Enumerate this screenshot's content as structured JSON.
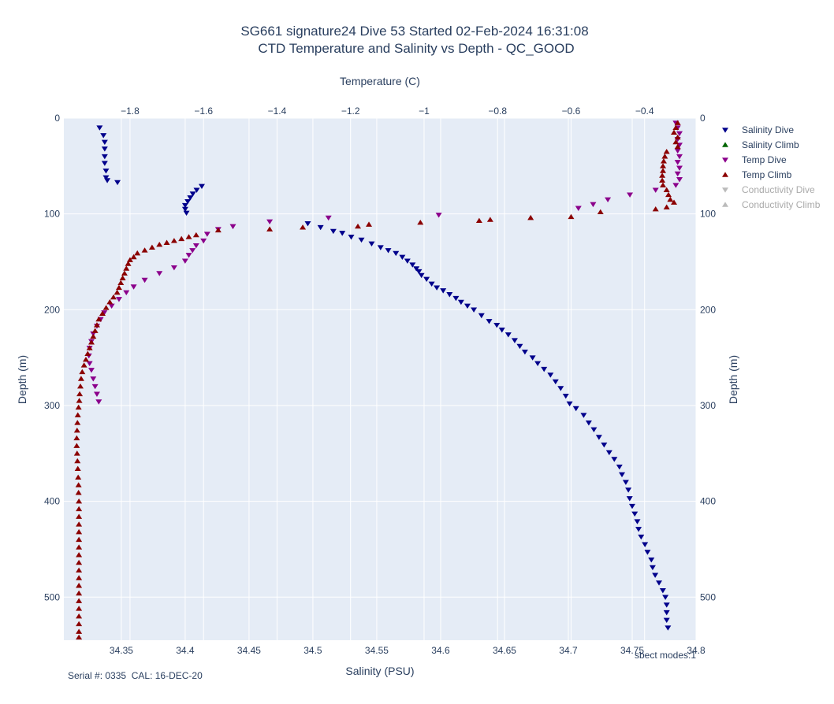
{
  "chart_data": {
    "type": "scatter",
    "title": "SG661 signature24 Dive 53 Started 02-Feb-2024 16:31:08",
    "subtitle": "CTD Temperature and Salinity vs Depth - QC_GOOD",
    "xlabel_bottom": "Salinity (PSU)",
    "xlabel_top": "Temperature (C)",
    "ylabel": "Depth (m)",
    "salinity_range": [
      34.305,
      34.8
    ],
    "temperature_range": [
      -1.98,
      -0.26
    ],
    "depth_range": [
      545,
      0
    ],
    "grid": true,
    "legend_position": "right",
    "salinity_ticks": [
      "34.35",
      "34.4",
      "34.45",
      "34.5",
      "34.55",
      "34.6",
      "34.65",
      "34.7",
      "34.75",
      "34.8"
    ],
    "salinity_tick_values": [
      34.35,
      34.4,
      34.45,
      34.5,
      34.55,
      34.6,
      34.65,
      34.7,
      34.75,
      34.8
    ],
    "temperature_ticks": [
      "−1.8",
      "−1.6",
      "−1.4",
      "−1.2",
      "−1",
      "−0.8",
      "−0.6",
      "−0.4"
    ],
    "temperature_tick_values": [
      -1.8,
      -1.6,
      -1.4,
      -1.2,
      -1.0,
      -0.8,
      -0.6,
      -0.4
    ],
    "depth_ticks": [
      "0",
      "100",
      "200",
      "300",
      "400",
      "500"
    ],
    "depth_tick_values": [
      0,
      100,
      200,
      300,
      400,
      500
    ],
    "series": [
      {
        "name": "Salinity Dive",
        "axis": "salinity",
        "marker": "triangle-down",
        "color": "#00008b",
        "visible": true,
        "points": [
          [
            34.333,
            10
          ],
          [
            34.336,
            18
          ],
          [
            34.337,
            25
          ],
          [
            34.337,
            32
          ],
          [
            34.337,
            40
          ],
          [
            34.337,
            47
          ],
          [
            34.338,
            55
          ],
          [
            34.338,
            62
          ],
          [
            34.339,
            65
          ],
          [
            34.347,
            67
          ],
          [
            34.413,
            71
          ],
          [
            34.409,
            75
          ],
          [
            34.406,
            79
          ],
          [
            34.404,
            83
          ],
          [
            34.402,
            87
          ],
          [
            34.4,
            91
          ],
          [
            34.4,
            95
          ],
          [
            34.401,
            99
          ],
          [
            34.496,
            110
          ],
          [
            34.506,
            114
          ],
          [
            34.516,
            118
          ],
          [
            34.523,
            120
          ],
          [
            34.53,
            124
          ],
          [
            34.538,
            127
          ],
          [
            34.546,
            131
          ],
          [
            34.553,
            135
          ],
          [
            34.559,
            138
          ],
          [
            34.565,
            141
          ],
          [
            34.57,
            145
          ],
          [
            34.574,
            149
          ],
          [
            34.578,
            153
          ],
          [
            34.581,
            157
          ],
          [
            34.583,
            160
          ],
          [
            34.585,
            164
          ],
          [
            34.589,
            168
          ],
          [
            34.593,
            173
          ],
          [
            34.597,
            177
          ],
          [
            34.602,
            180
          ],
          [
            34.607,
            184
          ],
          [
            34.612,
            188
          ],
          [
            34.616,
            192
          ],
          [
            34.621,
            196
          ],
          [
            34.626,
            200
          ],
          [
            34.632,
            206
          ],
          [
            34.638,
            212
          ],
          [
            34.644,
            216
          ],
          [
            34.648,
            221
          ],
          [
            34.653,
            226
          ],
          [
            34.658,
            232
          ],
          [
            34.662,
            238
          ],
          [
            34.666,
            244
          ],
          [
            34.672,
            250
          ],
          [
            34.676,
            256
          ],
          [
            34.681,
            262
          ],
          [
            34.686,
            268
          ],
          [
            34.69,
            275
          ],
          [
            34.694,
            282
          ],
          [
            34.698,
            290
          ],
          [
            34.701,
            298
          ],
          [
            34.706,
            303
          ],
          [
            34.712,
            310
          ],
          [
            34.716,
            318
          ],
          [
            34.72,
            325
          ],
          [
            34.724,
            333
          ],
          [
            34.728,
            341
          ],
          [
            34.732,
            349
          ],
          [
            34.736,
            356
          ],
          [
            34.74,
            364
          ],
          [
            34.742,
            372
          ],
          [
            34.745,
            380
          ],
          [
            34.747,
            388
          ],
          [
            34.748,
            397
          ],
          [
            34.75,
            405
          ],
          [
            34.752,
            413
          ],
          [
            34.754,
            421
          ],
          [
            34.755,
            429
          ],
          [
            34.757,
            437
          ],
          [
            34.76,
            445
          ],
          [
            34.762,
            453
          ],
          [
            34.765,
            461
          ],
          [
            34.766,
            469
          ],
          [
            34.768,
            477
          ],
          [
            34.771,
            485
          ],
          [
            34.774,
            493
          ],
          [
            34.776,
            500
          ],
          [
            34.777,
            508
          ],
          [
            34.777,
            516
          ],
          [
            34.777,
            524
          ],
          [
            34.778,
            532
          ]
        ]
      },
      {
        "name": "Salinity Climb",
        "axis": "salinity",
        "marker": "triangle-up",
        "color": "#006400",
        "visible": true,
        "points": []
      },
      {
        "name": "Temp Dive",
        "axis": "temperature",
        "marker": "triangle-down",
        "color": "#8b008b",
        "visible": true,
        "points": [
          [
            -0.315,
            5
          ],
          [
            -0.31,
            10
          ],
          [
            -0.305,
            16
          ],
          [
            -0.31,
            22
          ],
          [
            -0.305,
            28
          ],
          [
            -0.31,
            34
          ],
          [
            -0.305,
            40
          ],
          [
            -0.31,
            46
          ],
          [
            -0.305,
            52
          ],
          [
            -0.31,
            58
          ],
          [
            -0.305,
            64
          ],
          [
            -0.315,
            70
          ],
          [
            -0.37,
            75
          ],
          [
            -0.44,
            80
          ],
          [
            -0.5,
            85
          ],
          [
            -0.54,
            90
          ],
          [
            -0.58,
            94
          ],
          [
            -0.96,
            101
          ],
          [
            -1.26,
            104
          ],
          [
            -1.42,
            108
          ],
          [
            -1.52,
            113
          ],
          [
            -1.56,
            116
          ],
          [
            -1.59,
            121
          ],
          [
            -1.6,
            128
          ],
          [
            -1.62,
            133
          ],
          [
            -1.63,
            138
          ],
          [
            -1.64,
            143
          ],
          [
            -1.65,
            149
          ],
          [
            -1.68,
            156
          ],
          [
            -1.72,
            162
          ],
          [
            -1.76,
            169
          ],
          [
            -1.79,
            176
          ],
          [
            -1.81,
            182
          ],
          [
            -1.83,
            189
          ],
          [
            -1.85,
            196
          ],
          [
            -1.87,
            203
          ],
          [
            -1.88,
            210
          ],
          [
            -1.89,
            217
          ],
          [
            -1.9,
            225
          ],
          [
            -1.905,
            233
          ],
          [
            -1.91,
            240
          ],
          [
            -1.912,
            248
          ],
          [
            -1.91,
            256
          ],
          [
            -1.905,
            263
          ],
          [
            -1.9,
            272
          ],
          [
            -1.895,
            280
          ],
          [
            -1.89,
            288
          ],
          [
            -1.885,
            296
          ]
        ]
      },
      {
        "name": "Temp Climb",
        "axis": "temperature",
        "marker": "triangle-up",
        "color": "#8b0000",
        "visible": true,
        "points": [
          [
            -0.31,
            5
          ],
          [
            -0.315,
            10
          ],
          [
            -0.32,
            15
          ],
          [
            -0.31,
            20
          ],
          [
            -0.315,
            25
          ],
          [
            -0.31,
            30
          ],
          [
            -0.34,
            35
          ],
          [
            -0.345,
            40
          ],
          [
            -0.348,
            45
          ],
          [
            -0.35,
            50
          ],
          [
            -0.35,
            55
          ],
          [
            -0.352,
            60
          ],
          [
            -0.352,
            65
          ],
          [
            -0.35,
            70
          ],
          [
            -0.34,
            75
          ],
          [
            -0.335,
            80
          ],
          [
            -0.33,
            85
          ],
          [
            -0.32,
            88
          ],
          [
            -0.34,
            93
          ],
          [
            -0.37,
            95
          ],
          [
            -0.52,
            98
          ],
          [
            -0.6,
            103
          ],
          [
            -0.71,
            104
          ],
          [
            -0.82,
            106
          ],
          [
            -0.85,
            107
          ],
          [
            -1.01,
            109
          ],
          [
            -1.15,
            111
          ],
          [
            -1.18,
            113
          ],
          [
            -1.33,
            114
          ],
          [
            -1.42,
            116
          ],
          [
            -1.56,
            117
          ],
          [
            -1.62,
            122
          ],
          [
            -1.64,
            124
          ],
          [
            -1.66,
            126
          ],
          [
            -1.68,
            128
          ],
          [
            -1.7,
            130
          ],
          [
            -1.72,
            132
          ],
          [
            -1.74,
            135
          ],
          [
            -1.76,
            138
          ],
          [
            -1.78,
            141
          ],
          [
            -1.79,
            145
          ],
          [
            -1.8,
            148
          ],
          [
            -1.805,
            152
          ],
          [
            -1.81,
            157
          ],
          [
            -1.815,
            162
          ],
          [
            -1.82,
            167
          ],
          [
            -1.825,
            172
          ],
          [
            -1.83,
            177
          ],
          [
            -1.835,
            182
          ],
          [
            -1.845,
            187
          ],
          [
            -1.855,
            192
          ],
          [
            -1.865,
            198
          ],
          [
            -1.875,
            204
          ],
          [
            -1.885,
            210
          ],
          [
            -1.89,
            216
          ],
          [
            -1.895,
            222
          ],
          [
            -1.9,
            228
          ],
          [
            -1.905,
            234
          ],
          [
            -1.91,
            240
          ],
          [
            -1.915,
            246
          ],
          [
            -1.92,
            252
          ],
          [
            -1.925,
            258
          ],
          [
            -1.93,
            265
          ],
          [
            -1.933,
            272
          ],
          [
            -1.935,
            280
          ],
          [
            -1.937,
            288
          ],
          [
            -1.938,
            295
          ],
          [
            -1.94,
            302
          ],
          [
            -1.942,
            310
          ],
          [
            -1.943,
            318
          ],
          [
            -1.944,
            326
          ],
          [
            -1.945,
            334
          ],
          [
            -1.945,
            342
          ],
          [
            -1.944,
            350
          ],
          [
            -1.943,
            358
          ],
          [
            -1.942,
            366
          ],
          [
            -1.941,
            375
          ],
          [
            -1.94,
            383
          ],
          [
            -1.94,
            391
          ],
          [
            -1.939,
            400
          ],
          [
            -1.939,
            408
          ],
          [
            -1.939,
            416
          ],
          [
            -1.939,
            424
          ],
          [
            -1.939,
            432
          ],
          [
            -1.939,
            440
          ],
          [
            -1.939,
            448
          ],
          [
            -1.939,
            456
          ],
          [
            -1.939,
            464
          ],
          [
            -1.939,
            472
          ],
          [
            -1.939,
            480
          ],
          [
            -1.939,
            488
          ],
          [
            -1.939,
            496
          ],
          [
            -1.939,
            504
          ],
          [
            -1.939,
            512
          ],
          [
            -1.939,
            520
          ],
          [
            -1.939,
            528
          ],
          [
            -1.939,
            536
          ],
          [
            -1.939,
            542
          ]
        ]
      },
      {
        "name": "Conductivity Dive",
        "axis": "none",
        "marker": "triangle-down",
        "color": "#bbbbbb",
        "visible": false,
        "points": []
      },
      {
        "name": "Conductivity Climb",
        "axis": "none",
        "marker": "triangle-up",
        "color": "#bbbbbb",
        "visible": false,
        "points": []
      }
    ]
  },
  "annotations": {
    "serial": "Serial #: 0335  CAL: 16-DEC-20",
    "spect_modes": "sbect modes:1"
  },
  "colors": {
    "plot_background": "#e5ecf6",
    "grid": "#ffffff",
    "text": "#2a3f5f",
    "legend_hidden_text": "#aaaaaa"
  }
}
